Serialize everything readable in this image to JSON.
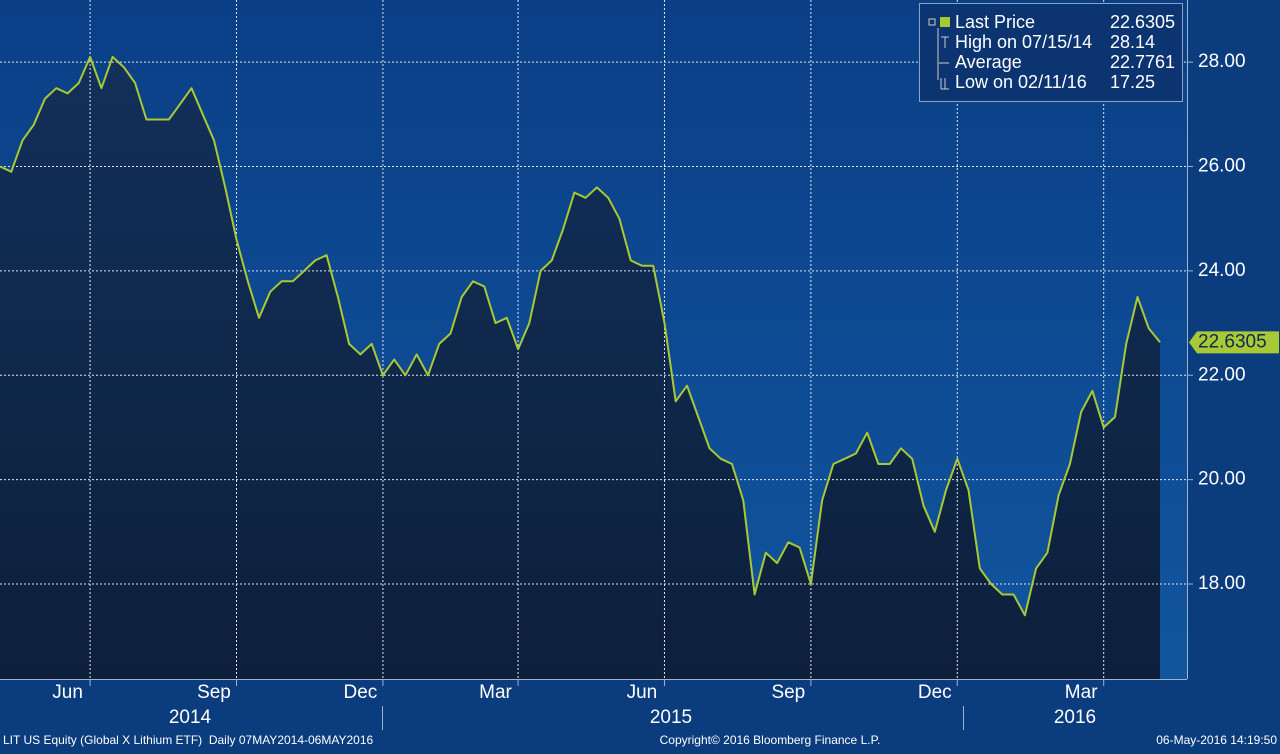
{
  "chart_data": {
    "type": "area-line",
    "categories": [
      null,
      null,
      null,
      null,
      null,
      null,
      "Jun",
      null,
      null,
      null,
      null,
      null,
      null,
      null,
      null,
      null,
      null,
      null,
      null,
      "Sep",
      null,
      null,
      null,
      null,
      null,
      null,
      null,
      null,
      null,
      null,
      null,
      null,
      "Dec",
      null,
      null,
      null,
      null,
      null,
      null,
      null,
      null,
      null,
      null,
      null,
      "Mar",
      null,
      null,
      null,
      null,
      null,
      null,
      null,
      null,
      null,
      null,
      null,
      null,
      "Jun",
      null,
      null,
      null,
      null,
      null,
      null,
      null,
      null,
      null,
      null,
      null,
      null,
      "Sep",
      null,
      null,
      null,
      null,
      null,
      null,
      null,
      null,
      null,
      null,
      null,
      null,
      "Dec",
      null,
      null,
      null,
      null,
      null,
      null,
      null,
      null,
      null,
      null,
      null,
      null,
      "Mar",
      null,
      null,
      null,
      null,
      null,
      null,
      null
    ],
    "year_labels": [
      "2014",
      "2015",
      "2016"
    ],
    "series": [
      {
        "name": "Last Price",
        "color": "#a9c934",
        "values": [
          26.0,
          25.9,
          26.5,
          26.8,
          27.3,
          27.5,
          27.4,
          27.6,
          28.1,
          27.5,
          28.1,
          27.9,
          27.6,
          26.9,
          26.9,
          26.9,
          27.2,
          27.5,
          27.0,
          26.5,
          25.6,
          24.6,
          23.8,
          23.1,
          23.6,
          23.8,
          23.8,
          24.0,
          24.2,
          24.3,
          23.5,
          22.6,
          22.4,
          22.6,
          22.0,
          22.3,
          22.0,
          22.4,
          22.0,
          22.6,
          22.8,
          23.5,
          23.8,
          23.7,
          23.0,
          23.1,
          22.5,
          23.0,
          24.0,
          24.2,
          24.8,
          25.5,
          25.4,
          25.6,
          25.4,
          25.0,
          24.2,
          24.1,
          24.1,
          23.0,
          21.5,
          21.8,
          21.2,
          20.6,
          20.4,
          20.3,
          19.6,
          17.8,
          18.6,
          18.4,
          18.8,
          18.7,
          18.0,
          19.6,
          20.3,
          20.4,
          20.5,
          20.9,
          20.3,
          20.3,
          20.6,
          20.4,
          19.5,
          19.0,
          19.8,
          20.4,
          19.8,
          18.3,
          18.0,
          17.8,
          17.8,
          17.4,
          18.3,
          18.6,
          19.7,
          20.3,
          21.3,
          21.7,
          21.0,
          21.2,
          22.6,
          23.5,
          22.9,
          22.6305
        ]
      }
    ],
    "ylim": [
      16.18,
      29.19
    ],
    "yticks": [
      {
        "value": 18,
        "label": "18.00"
      },
      {
        "value": 20,
        "label": "20.00"
      },
      {
        "value": 22,
        "label": "22.00"
      },
      {
        "value": 24,
        "label": "24.00"
      },
      {
        "value": 26,
        "label": "26.00"
      },
      {
        "value": 28,
        "label": "28.00"
      }
    ],
    "grid": true,
    "legend": [
      {
        "label": "Last Price",
        "value": 22.6305
      },
      {
        "label": "High on 07/15/14",
        "value": 28.14
      },
      {
        "label": "Average",
        "value": 22.7761
      },
      {
        "label": "Low on 02/11/16",
        "value": 17.25
      }
    ],
    "footer_left": "LIT US Equity (Global X Lithium ETF)  Daily 07MAY2014-06MAY2016",
    "copyright": "Copyright© 2016 Bloomberg Finance L.P.",
    "timestamp": "06-May-2016 14:19:50"
  }
}
